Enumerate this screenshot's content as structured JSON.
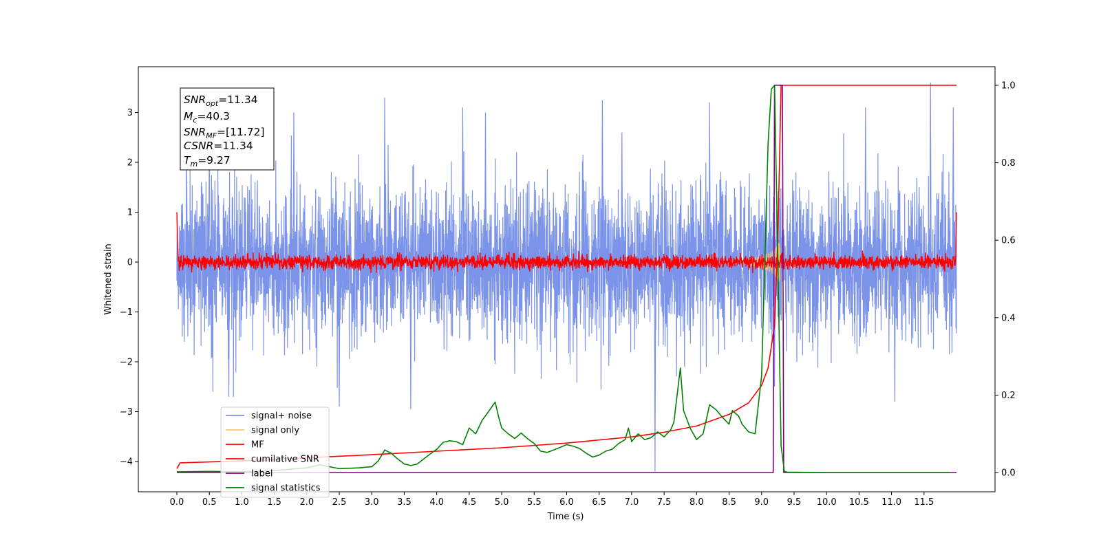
{
  "chart_data": {
    "type": "line",
    "xlabel": "Time (s)",
    "ylabel": "Whitened strain",
    "xlim": [
      -0.6,
      12.6
    ],
    "ylim_left": [
      -4.55,
      3.9
    ],
    "ylim_right": [
      -0.05,
      1.05
    ],
    "x_ticks": [
      0.0,
      0.5,
      1.0,
      1.5,
      2.0,
      2.5,
      3.0,
      3.5,
      4.0,
      4.5,
      5.0,
      5.5,
      6.0,
      6.5,
      7.0,
      7.5,
      8.0,
      8.5,
      9.0,
      9.5,
      10.0,
      10.5,
      11.0,
      11.5
    ],
    "x_tick_labels": [
      "0.0",
      "0.5",
      "1.0",
      "1.5",
      "2.0",
      "2.5",
      "3.0",
      "3.5",
      "4.0",
      "4.5",
      "5.0",
      "5.5",
      "6.0",
      "6.5",
      "7.0",
      "7.5",
      "8.0",
      "8.5",
      "9.0",
      "9.5",
      "10.0",
      "10.5",
      "11.0",
      "11.5"
    ],
    "y_ticks_left": [
      3,
      2,
      1,
      0,
      -1,
      -2,
      -3,
      -4
    ],
    "y_tick_labels_left": [
      "3",
      "2",
      "1",
      "0",
      "−1",
      "−2",
      "−3",
      "−4"
    ],
    "y_ticks_right": [
      1.0,
      0.8,
      0.6,
      0.4,
      0.2,
      0.0
    ],
    "y_tick_labels_right": [
      "1.0",
      "0.8",
      "0.6",
      "0.4",
      "0.2",
      "0.0"
    ],
    "stats_box": {
      "snr_opt": {
        "sym": "SNR",
        "sub": "opt",
        "val": "=11.34"
      },
      "mc": {
        "sym": "M",
        "sub": "c",
        "val": "=40.3"
      },
      "snr_mf": {
        "sym": "SNR",
        "sub": "MF",
        "val": "=[11.72]"
      },
      "csnr": {
        "sym": "CSNR",
        "sub": "",
        "val": "=11.34"
      },
      "tm": {
        "sym": "T",
        "sub": "m",
        "val": "=9.27"
      }
    },
    "legend": {
      "placement": "lower-left",
      "entries": [
        {
          "label": "signal+ noise",
          "color": "#7b93e8"
        },
        {
          "label": "signal only",
          "color": "#f5c96b"
        },
        {
          "label": "MF",
          "color": "#ff0000"
        },
        {
          "label": "cumilative SNR",
          "color": "#ff0000"
        },
        {
          "label": "label",
          "color": "#800080"
        },
        {
          "label": "signal statistics",
          "color": "#008000"
        }
      ]
    },
    "series": [
      {
        "name": "signal+ noise",
        "axis": "left",
        "color": "#7b93e8",
        "t_range": [
          0,
          12
        ],
        "approx_std": 0.75,
        "approx_range": [
          -3.0,
          3.6
        ]
      },
      {
        "name": "signal only",
        "axis": "left",
        "color": "#f5c96b",
        "peak_time": 9.27,
        "peak_amplitude": 0.45
      },
      {
        "name": "MF",
        "axis": "left",
        "color": "#ff0000",
        "t_range": [
          0,
          12
        ],
        "approx_std": 0.07,
        "edge_values": [
          1.0,
          1.0
        ]
      },
      {
        "name": "cumilative SNR",
        "axis": "right",
        "color": "#ff0000",
        "x": [
          0.0,
          0.05,
          1.0,
          2.0,
          3.0,
          4.0,
          5.0,
          6.0,
          7.0,
          7.5,
          8.0,
          8.5,
          8.8,
          9.0,
          9.1,
          9.2,
          9.25,
          9.3,
          12.0
        ],
        "y": [
          0.01,
          0.025,
          0.03,
          0.038,
          0.046,
          0.055,
          0.064,
          0.076,
          0.092,
          0.104,
          0.12,
          0.15,
          0.18,
          0.225,
          0.27,
          0.38,
          0.6,
          1.0,
          1.0
        ]
      },
      {
        "name": "label",
        "axis": "right",
        "color": "#800080",
        "x": [
          0.0,
          9.18,
          9.2,
          9.32,
          9.34,
          12.0
        ],
        "y": [
          0.0,
          0.0,
          1.0,
          1.0,
          0.0,
          0.0
        ]
      },
      {
        "name": "signal statistics",
        "axis": "right",
        "color": "#008000",
        "x": [
          0.0,
          0.5,
          1.0,
          1.5,
          2.0,
          2.2,
          2.5,
          2.8,
          3.0,
          3.1,
          3.2,
          3.3,
          3.4,
          3.5,
          3.6,
          3.7,
          3.8,
          3.9,
          4.0,
          4.1,
          4.2,
          4.3,
          4.4,
          4.5,
          4.6,
          4.7,
          4.8,
          4.9,
          4.95,
          5.0,
          5.1,
          5.2,
          5.3,
          5.4,
          5.5,
          5.6,
          5.7,
          5.8,
          5.9,
          6.0,
          6.1,
          6.2,
          6.3,
          6.4,
          6.5,
          6.6,
          6.7,
          6.8,
          6.9,
          6.95,
          7.0,
          7.1,
          7.2,
          7.3,
          7.4,
          7.5,
          7.6,
          7.65,
          7.75,
          7.8,
          7.9,
          8.0,
          8.1,
          8.2,
          8.3,
          8.4,
          8.5,
          8.55,
          8.65,
          8.7,
          8.8,
          8.9,
          9.0,
          9.1,
          9.15,
          9.2,
          9.25,
          9.3,
          9.35,
          9.4,
          10.0,
          11.0,
          11.9
        ],
        "y": [
          0.002,
          0.003,
          0.002,
          0.005,
          0.012,
          0.02,
          0.01,
          0.012,
          0.015,
          0.03,
          0.058,
          0.05,
          0.035,
          0.022,
          0.018,
          0.022,
          0.035,
          0.048,
          0.06,
          0.078,
          0.082,
          0.08,
          0.072,
          0.115,
          0.1,
          0.135,
          0.158,
          0.182,
          0.145,
          0.115,
          0.1,
          0.088,
          0.102,
          0.087,
          0.075,
          0.055,
          0.052,
          0.058,
          0.065,
          0.072,
          0.068,
          0.062,
          0.05,
          0.04,
          0.045,
          0.055,
          0.06,
          0.075,
          0.085,
          0.115,
          0.08,
          0.1,
          0.085,
          0.09,
          0.105,
          0.092,
          0.11,
          0.13,
          0.27,
          0.16,
          0.115,
          0.085,
          0.1,
          0.175,
          0.162,
          0.142,
          0.125,
          0.16,
          0.145,
          0.125,
          0.105,
          0.1,
          0.25,
          0.85,
          0.99,
          1.0,
          0.55,
          0.07,
          0.003,
          0.001,
          0.0,
          0.0,
          0.0
        ]
      }
    ]
  }
}
